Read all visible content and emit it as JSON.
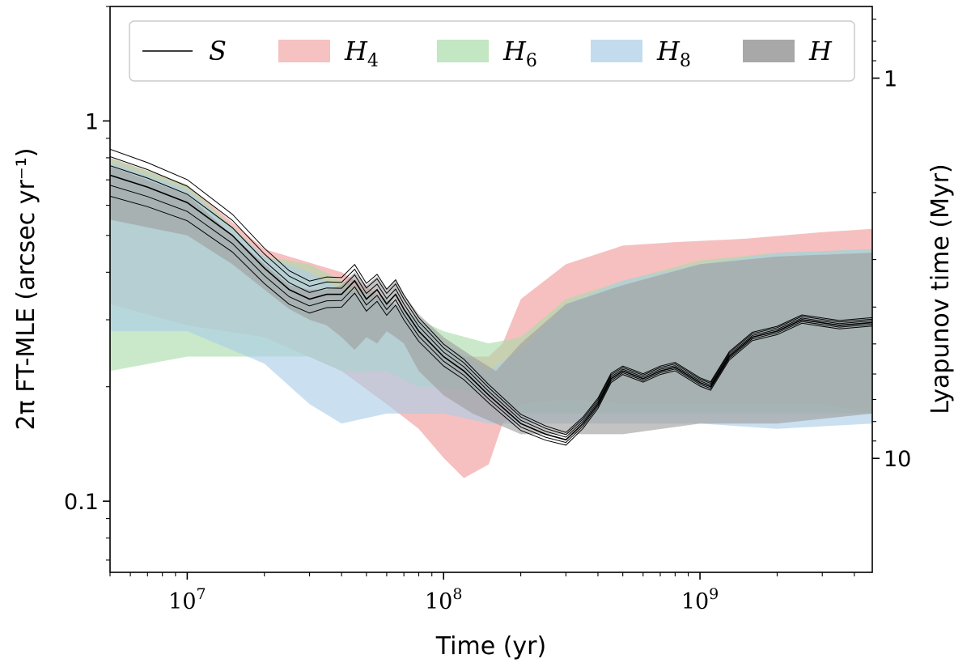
{
  "chart_data": {
    "type": "area",
    "xlabel": "Time (yr)",
    "ylabel": "2π FT-MLE (arcsec yr⁻¹)",
    "ylabel_right": "Lyapunov time (Myr)",
    "xscale": "log",
    "yscale": "log",
    "xlim": [
      5000000,
      4700000000
    ],
    "ylim": [
      0.065,
      2.0
    ],
    "x_ticks": [
      {
        "value": 10000000,
        "mantissa": "10",
        "exponent": "7"
      },
      {
        "value": 100000000,
        "mantissa": "10",
        "exponent": "8"
      },
      {
        "value": 1000000000,
        "mantissa": "10",
        "exponent": "9"
      }
    ],
    "y_ticks": [
      {
        "value": 0.1,
        "label": "0.1"
      },
      {
        "value": 1,
        "label": "1"
      }
    ],
    "y_right_ticks": [
      {
        "value": 1,
        "label": "1"
      },
      {
        "value": 10,
        "label": "10"
      }
    ],
    "legend_position": "top",
    "legend": [
      {
        "symbol": "S",
        "kind": "line",
        "color": "#000000"
      },
      {
        "symbol": "H",
        "sub": "4",
        "kind": "band",
        "color": "#f2a7a7"
      },
      {
        "symbol": "H",
        "sub": "6",
        "kind": "band",
        "color": "#a9dcaa"
      },
      {
        "symbol": "H",
        "sub": "8",
        "kind": "band",
        "color": "#a9cde6"
      },
      {
        "symbol": "H",
        "kind": "band",
        "color": "#9e9e9e"
      }
    ],
    "bands": [
      {
        "name": "H4",
        "color": "#f2a7a7",
        "opacity": 0.72,
        "x": [
          5000000.0,
          10000000.0,
          20000000.0,
          40000000.0,
          60000000.0,
          80000000.0,
          100000000.0,
          120000000.0,
          150000000.0,
          170000000.0,
          200000000.0,
          300000000.0,
          500000000.0,
          800000000.0,
          1500000000.0,
          3000000000.0,
          4700000000.0
        ],
        "lower": [
          0.33,
          0.29,
          0.27,
          0.22,
          0.18,
          0.155,
          0.13,
          0.115,
          0.125,
          0.16,
          0.18,
          0.185,
          0.18,
          0.18,
          0.18,
          0.18,
          0.17
        ],
        "upper": [
          0.8,
          0.68,
          0.46,
          0.4,
          0.34,
          0.28,
          0.24,
          0.24,
          0.24,
          0.26,
          0.34,
          0.42,
          0.47,
          0.48,
          0.49,
          0.51,
          0.52
        ]
      },
      {
        "name": "H6",
        "color": "#a9dcaa",
        "opacity": 0.62,
        "x": [
          5000000.0,
          10000000.0,
          20000000.0,
          30000000.0,
          40000000.0,
          60000000.0,
          80000000.0,
          100000000.0,
          150000000.0,
          200000000.0,
          300000000.0,
          500000000.0,
          1000000000.0,
          2000000000.0,
          4700000000.0
        ],
        "lower": [
          0.22,
          0.24,
          0.24,
          0.24,
          0.22,
          0.22,
          0.2,
          0.2,
          0.19,
          0.17,
          0.17,
          0.17,
          0.17,
          0.17,
          0.17
        ],
        "upper": [
          0.8,
          0.68,
          0.44,
          0.42,
          0.38,
          0.34,
          0.3,
          0.28,
          0.26,
          0.27,
          0.34,
          0.38,
          0.43,
          0.45,
          0.46
        ]
      },
      {
        "name": "H8",
        "color": "#a9cde6",
        "opacity": 0.62,
        "x": [
          5000000.0,
          10000000.0,
          20000000.0,
          30000000.0,
          40000000.0,
          60000000.0,
          80000000.0,
          100000000.0,
          150000000.0,
          200000000.0,
          300000000.0,
          500000000.0,
          1000000000.0,
          2000000000.0,
          4700000000.0
        ],
        "lower": [
          0.28,
          0.28,
          0.23,
          0.18,
          0.16,
          0.17,
          0.17,
          0.17,
          0.16,
          0.16,
          0.16,
          0.16,
          0.16,
          0.155,
          0.16
        ],
        "upper": [
          0.78,
          0.66,
          0.44,
          0.4,
          0.36,
          0.34,
          0.3,
          0.26,
          0.22,
          0.25,
          0.33,
          0.38,
          0.42,
          0.45,
          0.46
        ]
      },
      {
        "name": "H",
        "color": "#9e9e9e",
        "opacity": 0.62,
        "x": [
          5000000.0,
          10000000.0,
          15000000.0,
          20000000.0,
          25000000.0,
          30000000.0,
          35000000.0,
          40000000.0,
          45000000.0,
          50000000.0,
          55000000.0,
          60000000.0,
          65000000.0,
          70000000.0,
          80000000.0,
          100000000.0,
          130000000.0,
          160000000.0,
          200000000.0,
          300000000.0,
          500000000.0,
          1000000000.0,
          2000000000.0,
          4700000000.0
        ],
        "lower": [
          0.55,
          0.5,
          0.42,
          0.36,
          0.32,
          0.3,
          0.29,
          0.27,
          0.25,
          0.27,
          0.26,
          0.28,
          0.27,
          0.26,
          0.22,
          0.19,
          0.17,
          0.16,
          0.15,
          0.15,
          0.15,
          0.16,
          0.16,
          0.17
        ],
        "upper": [
          0.76,
          0.64,
          0.5,
          0.42,
          0.37,
          0.36,
          0.36,
          0.37,
          0.4,
          0.37,
          0.39,
          0.36,
          0.38,
          0.35,
          0.31,
          0.27,
          0.24,
          0.22,
          0.26,
          0.33,
          0.37,
          0.42,
          0.44,
          0.45
        ]
      }
    ],
    "series": [
      {
        "name": "S",
        "color": "#000000",
        "x": [
          5000000.0,
          7000000.0,
          10000000.0,
          15000000.0,
          20000000.0,
          25000000.0,
          30000000.0,
          35000000.0,
          40000000.0,
          45000000.0,
          50000000.0,
          55000000.0,
          60000000.0,
          65000000.0,
          70000000.0,
          80000000.0,
          100000000.0,
          120000000.0,
          150000000.0,
          200000000.0,
          250000000.0,
          300000000.0,
          350000000.0,
          400000000.0,
          450000000.0,
          500000000.0,
          600000000.0,
          700000000.0,
          800000000.0,
          1000000000.0,
          1100000000.0,
          1300000000.0,
          1600000000.0,
          2000000000.0,
          2500000000.0,
          3500000000.0,
          4700000000.0
        ],
        "y": [
          0.72,
          0.67,
          0.61,
          0.5,
          0.41,
          0.36,
          0.34,
          0.35,
          0.35,
          0.38,
          0.34,
          0.36,
          0.33,
          0.35,
          0.32,
          0.28,
          0.24,
          0.22,
          0.19,
          0.16,
          0.15,
          0.145,
          0.16,
          0.18,
          0.21,
          0.22,
          0.21,
          0.22,
          0.225,
          0.205,
          0.2,
          0.24,
          0.27,
          0.28,
          0.3,
          0.29,
          0.295
        ]
      }
    ]
  }
}
